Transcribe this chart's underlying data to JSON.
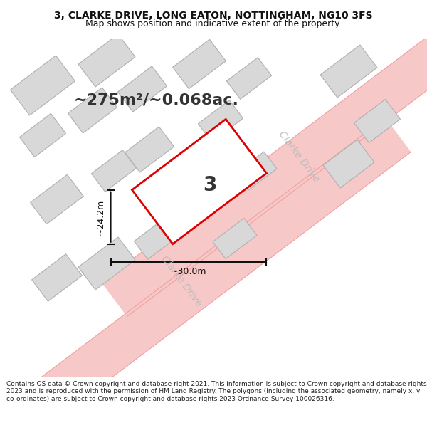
{
  "title": "3, CLARKE DRIVE, LONG EATON, NOTTINGHAM, NG10 3FS",
  "subtitle": "Map shows position and indicative extent of the property.",
  "area_label": "~275m²/~0.068ac.",
  "plot_number": "3",
  "dim_width": "~30.0m",
  "dim_height": "~24.2m",
  "background_color": "#f5f5f5",
  "road_color": "#f7c8c8",
  "road_stroke": "#f0a0a0",
  "building_fill": "#d8d8d8",
  "building_stroke": "#b0b0b0",
  "plot_fill": "#ffffff",
  "plot_stroke": "#dd0000",
  "dim_color": "#111111",
  "text_color": "#111111",
  "road_label_color": "#aaaaaa",
  "footer_text": "Contains OS data © Crown copyright and database right 2021. This information is subject to Crown copyright and database rights 2023 and is reproduced with the permission of HM Land Registry. The polygons (including the associated geometry, namely x, y co-ordinates) are subject to Crown copyright and database rights 2023 Ordnance Survey 100026316.",
  "road_label1": "Clarke Drive",
  "road_label2": "Clarke Drive"
}
